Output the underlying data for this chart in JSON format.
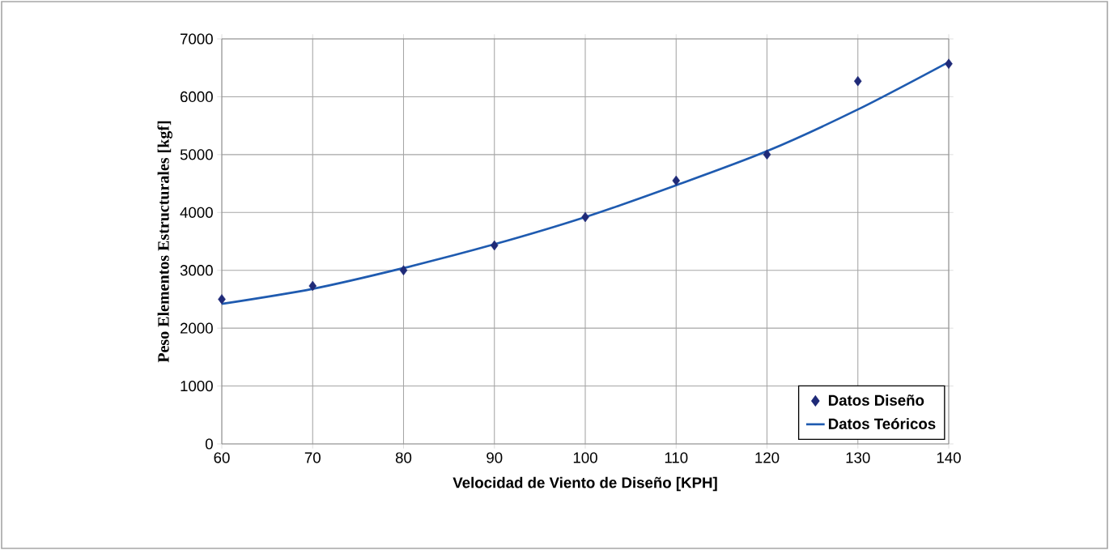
{
  "chart_data": {
    "type": "scatter",
    "xlabel": "Velocidad de Viento de Diseño [KPH]",
    "ylabel": "Peso Elementos Estructurales [kgf]",
    "xlim": [
      60,
      140
    ],
    "ylim": [
      0,
      7000
    ],
    "xticks": [
      60,
      70,
      80,
      90,
      100,
      110,
      120,
      130,
      140
    ],
    "yticks": [
      0,
      1000,
      2000,
      3000,
      4000,
      5000,
      6000,
      7000
    ],
    "grid": true,
    "legend": "bottom right",
    "series": [
      {
        "name": "Datos Diseño",
        "marker": "diamond",
        "color": "#1f2a78",
        "x": [
          60,
          70,
          80,
          90,
          100,
          110,
          120,
          130,
          140
        ],
        "values": [
          2500,
          2730,
          3000,
          3430,
          3920,
          4550,
          5000,
          6270,
          6570
        ]
      },
      {
        "name": "Datos Teóricos",
        "type": "line",
        "marker": "none",
        "color": "#1f5bb0",
        "x": [
          60,
          70,
          80,
          90,
          100,
          110,
          120,
          130,
          140
        ],
        "values": [
          2420,
          2680,
          3040,
          3450,
          3920,
          4470,
          5060,
          5780,
          6600
        ]
      }
    ]
  }
}
